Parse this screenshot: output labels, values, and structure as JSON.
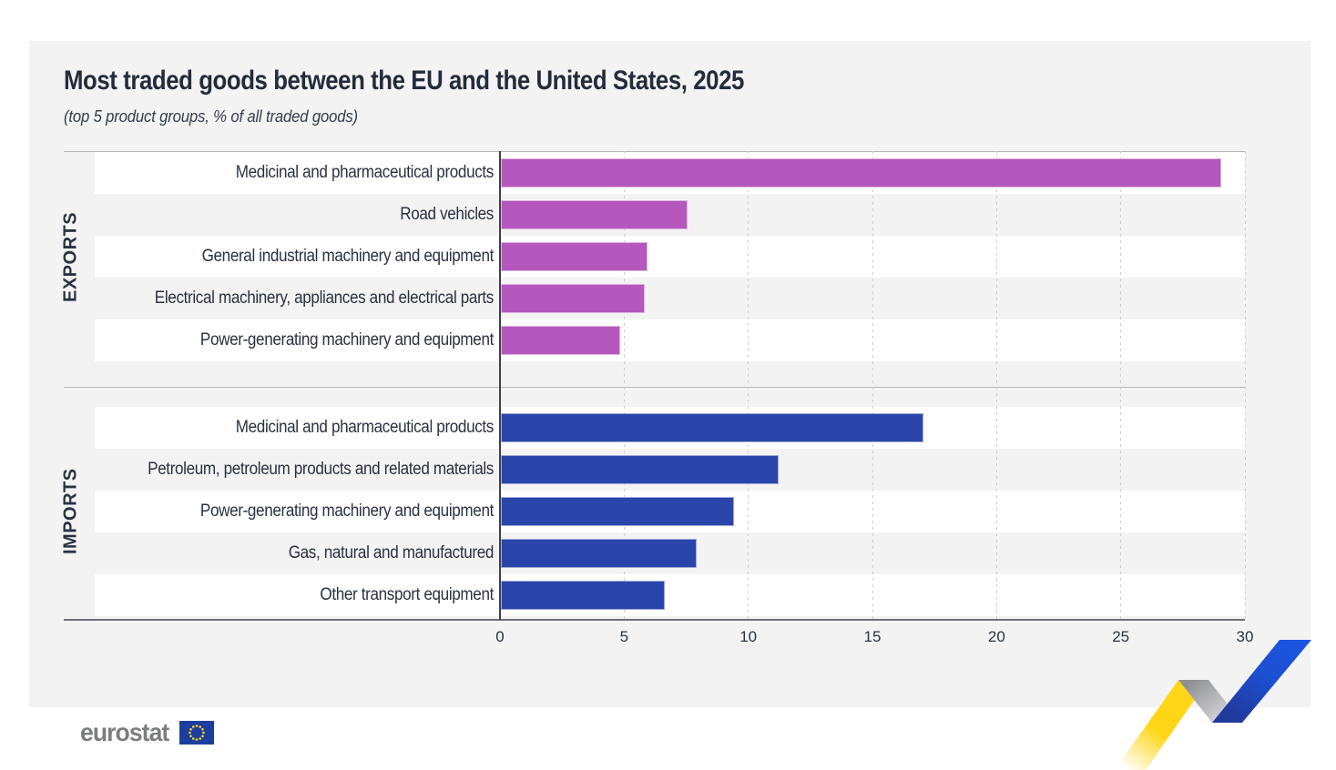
{
  "title": "Most traded goods between the EU and the United States, 2025",
  "subtitle": "(top 5 product groups, % of all traded goods)",
  "footer": {
    "logo_text": "eurostat"
  },
  "chart_data": {
    "type": "bar",
    "orientation": "horizontal",
    "value_unit": "% of all traded goods",
    "xlim": [
      0,
      30
    ],
    "x_ticks": [
      0,
      5,
      10,
      15,
      20,
      25,
      30
    ],
    "gridlines": "vertical-dashed",
    "sections": [
      {
        "label": "EXPORTS",
        "bar_color": "#b458bd",
        "rows": [
          {
            "label": "Medicinal and pharmaceutical products",
            "value": 29.0
          },
          {
            "label": "Road vehicles",
            "value": 7.5
          },
          {
            "label": "General industrial machinery and equipment",
            "value": 5.9
          },
          {
            "label": "Electrical machinery, appliances and electrical parts",
            "value": 5.8
          },
          {
            "label": "Power-generating machinery and equipment",
            "value": 4.8
          }
        ]
      },
      {
        "label": "IMPORTS",
        "bar_color": "#2a45a9",
        "rows": [
          {
            "label": "Medicinal and pharmaceutical products",
            "value": 17.0
          },
          {
            "label": "Petroleum, petroleum products and related materials",
            "value": 11.2
          },
          {
            "label": "Power-generating machinery and equipment",
            "value": 9.4
          },
          {
            "label": "Gas, natural and manufactured",
            "value": 7.9
          },
          {
            "label": "Other transport equipment",
            "value": 6.6
          }
        ]
      }
    ]
  },
  "colors": {
    "export_bar": "#b458bd",
    "import_bar": "#2a45a9",
    "card_bg": "#f3f3f4",
    "text_dark": "#2a3342",
    "logo_gray": "#7c7d80",
    "ribbon_yellow": "#ffd617",
    "ribbon_blue": "#1c55e0",
    "flag_blue": "#1c3e9e"
  }
}
